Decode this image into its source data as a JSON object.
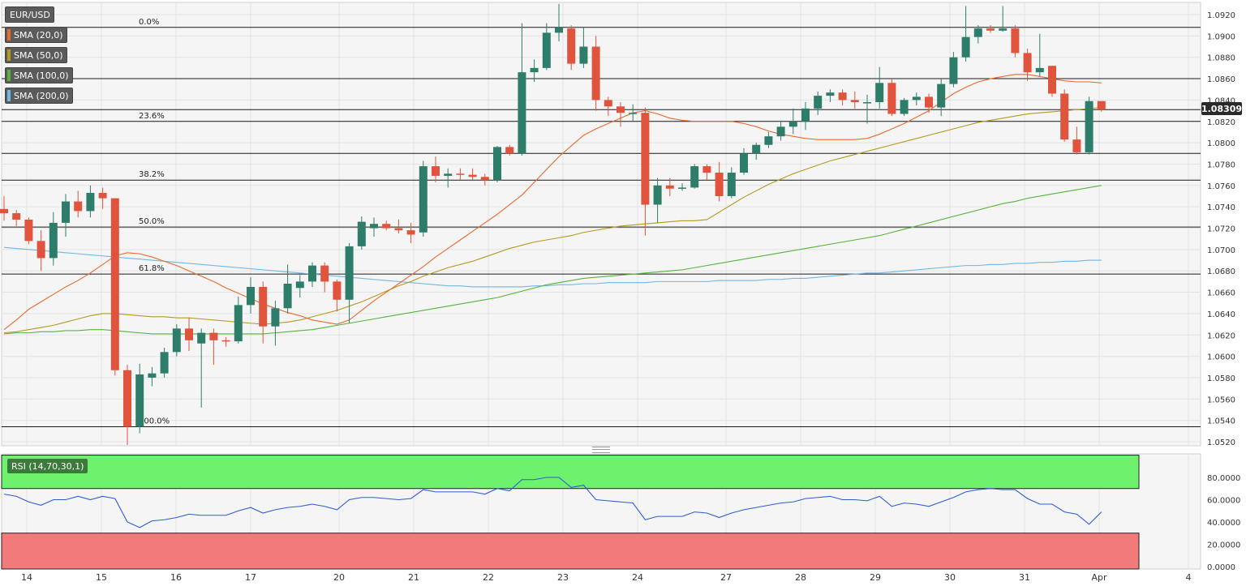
{
  "symbol": "EUR/USD",
  "current_price": "1.08309",
  "colors": {
    "bull": "#2e7d6b",
    "bear": "#e0533c",
    "sma20": "#e86a2d",
    "sma50": "#b59a1e",
    "sma100": "#57b33c",
    "sma200": "#6fb7e6",
    "rsi_line": "#2f5bd6",
    "rsi_over": "#6ef26e",
    "rsi_under": "#f27a7a"
  },
  "indicators": [
    {
      "label": "SMA (20,0)",
      "color": "#e86a2d"
    },
    {
      "label": "SMA (50,0)",
      "color": "#b59a1e"
    },
    {
      "label": "SMA (100,0)",
      "color": "#57b33c"
    },
    {
      "label": "SMA (200,0)",
      "color": "#6fb7e6"
    }
  ],
  "rsi_label": "RSI (14,70,30,1)",
  "chart_data": {
    "type": "candlestick",
    "instrument": "EUR/USD",
    "ylim": [
      1.0515,
      1.093
    ],
    "y_ticks": [
      "1.0520",
      "1.0540",
      "1.0560",
      "1.0580",
      "1.0600",
      "1.0620",
      "1.0640",
      "1.0660",
      "1.0680",
      "1.0700",
      "1.0720",
      "1.0740",
      "1.0760",
      "1.0780",
      "1.0800",
      "1.0820",
      "1.0840",
      "1.0860",
      "1.0880",
      "1.0900",
      "1.0920"
    ],
    "x_ticks": [
      "14",
      "15",
      "16",
      "17",
      "20",
      "21",
      "22",
      "23",
      "24",
      "27",
      "28",
      "29",
      "30",
      "31",
      "Apr",
      "4"
    ],
    "fib_levels": [
      {
        "label": "0.0%",
        "price": 1.0908
      },
      {
        "label": "23.6%",
        "price": 1.082
      },
      {
        "label": "38.2%",
        "price": 1.0765
      },
      {
        "label": "50.0%",
        "price": 1.0721
      },
      {
        "label": "61.8%",
        "price": 1.0677
      },
      {
        "label": "100.0%",
        "price": 1.0534
      }
    ],
    "horizontal_levels": [
      1.086,
      1.0831,
      1.079
    ],
    "candles": [
      {
        "t": 0,
        "o": 1.0738,
        "h": 1.075,
        "l": 1.0727,
        "c": 1.0734
      },
      {
        "t": 1,
        "o": 1.0734,
        "h": 1.0737,
        "l": 1.0722,
        "c": 1.0728
      },
      {
        "t": 2,
        "o": 1.0728,
        "h": 1.073,
        "l": 1.0705,
        "c": 1.0708
      },
      {
        "t": 3,
        "o": 1.0708,
        "h": 1.0718,
        "l": 1.068,
        "c": 1.0692
      },
      {
        "t": 4,
        "o": 1.0692,
        "h": 1.0735,
        "l": 1.0685,
        "c": 1.0725
      },
      {
        "t": 5,
        "o": 1.0725,
        "h": 1.0752,
        "l": 1.0712,
        "c": 1.0745
      },
      {
        "t": 6,
        "o": 1.0745,
        "h": 1.0755,
        "l": 1.073,
        "c": 1.0736
      },
      {
        "t": 7,
        "o": 1.0736,
        "h": 1.076,
        "l": 1.073,
        "c": 1.0753
      },
      {
        "t": 8,
        "o": 1.0753,
        "h": 1.0758,
        "l": 1.0738,
        "c": 1.0748
      },
      {
        "t": 9,
        "o": 1.0748,
        "h": 1.0748,
        "l": 1.0582,
        "c": 1.0587
      },
      {
        "t": 10,
        "o": 1.0587,
        "h": 1.0592,
        "l": 1.0517,
        "c": 1.0534
      },
      {
        "t": 11,
        "o": 1.0534,
        "h": 1.0593,
        "l": 1.0528,
        "c": 1.0583
      },
      {
        "t": 12,
        "o": 1.058,
        "h": 1.059,
        "l": 1.0572,
        "c": 1.0584
      },
      {
        "t": 13,
        "o": 1.0584,
        "h": 1.0608,
        "l": 1.058,
        "c": 1.0604
      },
      {
        "t": 14,
        "o": 1.0604,
        "h": 1.063,
        "l": 1.06,
        "c": 1.0626
      },
      {
        "t": 15,
        "o": 1.0626,
        "h": 1.0636,
        "l": 1.0605,
        "c": 1.0615
      },
      {
        "t": 16,
        "o": 1.0612,
        "h": 1.0626,
        "l": 1.0552,
        "c": 1.0622
      },
      {
        "t": 17,
        "o": 1.0622,
        "h": 1.0626,
        "l": 1.0592,
        "c": 1.0615
      },
      {
        "t": 18,
        "o": 1.0615,
        "h": 1.0618,
        "l": 1.0609,
        "c": 1.0614
      },
      {
        "t": 19,
        "o": 1.0614,
        "h": 1.0656,
        "l": 1.0612,
        "c": 1.0648
      },
      {
        "t": 20,
        "o": 1.0648,
        "h": 1.0674,
        "l": 1.064,
        "c": 1.0665
      },
      {
        "t": 21,
        "o": 1.0665,
        "h": 1.067,
        "l": 1.0612,
        "c": 1.0628
      },
      {
        "t": 22,
        "o": 1.0628,
        "h": 1.0652,
        "l": 1.061,
        "c": 1.0645
      },
      {
        "t": 23,
        "o": 1.0645,
        "h": 1.0686,
        "l": 1.064,
        "c": 1.0668
      },
      {
        "t": 24,
        "o": 1.0664,
        "h": 1.0676,
        "l": 1.0655,
        "c": 1.067
      },
      {
        "t": 25,
        "o": 1.067,
        "h": 1.0688,
        "l": 1.0665,
        "c": 1.0685
      },
      {
        "t": 26,
        "o": 1.0685,
        "h": 1.0688,
        "l": 1.066,
        "c": 1.067
      },
      {
        "t": 27,
        "o": 1.067,
        "h": 1.0672,
        "l": 1.0642,
        "c": 1.0653
      },
      {
        "t": 28,
        "o": 1.0653,
        "h": 1.0706,
        "l": 1.0631,
        "c": 1.0703
      },
      {
        "t": 29,
        "o": 1.0703,
        "h": 1.0731,
        "l": 1.07,
        "c": 1.0726
      },
      {
        "t": 30,
        "o": 1.072,
        "h": 1.073,
        "l": 1.0712,
        "c": 1.0724
      },
      {
        "t": 31,
        "o": 1.0724,
        "h": 1.0727,
        "l": 1.0718,
        "c": 1.072
      },
      {
        "t": 32,
        "o": 1.072,
        "h": 1.0728,
        "l": 1.0715,
        "c": 1.0718
      },
      {
        "t": 33,
        "o": 1.0718,
        "h": 1.0725,
        "l": 1.0706,
        "c": 1.0714
      },
      {
        "t": 34,
        "o": 1.0716,
        "h": 1.0783,
        "l": 1.0712,
        "c": 1.0778
      },
      {
        "t": 35,
        "o": 1.0778,
        "h": 1.0787,
        "l": 1.0763,
        "c": 1.0769
      },
      {
        "t": 36,
        "o": 1.0769,
        "h": 1.0776,
        "l": 1.0758,
        "c": 1.0771
      },
      {
        "t": 37,
        "o": 1.0771,
        "h": 1.0776,
        "l": 1.0765,
        "c": 1.077
      },
      {
        "t": 38,
        "o": 1.077,
        "h": 1.0776,
        "l": 1.0765,
        "c": 1.0768
      },
      {
        "t": 39,
        "o": 1.0768,
        "h": 1.0771,
        "l": 1.076,
        "c": 1.0765
      },
      {
        "t": 40,
        "o": 1.0765,
        "h": 1.0797,
        "l": 1.0763,
        "c": 1.0796
      },
      {
        "t": 41,
        "o": 1.0796,
        "h": 1.0798,
        "l": 1.0788,
        "c": 1.079
      },
      {
        "t": 42,
        "o": 1.079,
        "h": 1.0912,
        "l": 1.0788,
        "c": 1.0866
      },
      {
        "t": 43,
        "o": 1.0866,
        "h": 1.0878,
        "l": 1.0857,
        "c": 1.087
      },
      {
        "t": 44,
        "o": 1.087,
        "h": 1.0912,
        "l": 1.0868,
        "c": 1.0903
      },
      {
        "t": 45,
        "o": 1.0903,
        "h": 1.093,
        "l": 1.0895,
        "c": 1.0908
      },
      {
        "t": 46,
        "o": 1.0907,
        "h": 1.091,
        "l": 1.0868,
        "c": 1.0874
      },
      {
        "t": 47,
        "o": 1.0874,
        "h": 1.0908,
        "l": 1.087,
        "c": 1.089
      },
      {
        "t": 48,
        "o": 1.089,
        "h": 1.09,
        "l": 1.083,
        "c": 1.084
      },
      {
        "t": 49,
        "o": 1.084,
        "h": 1.0843,
        "l": 1.0825,
        "c": 1.0834
      },
      {
        "t": 50,
        "o": 1.0834,
        "h": 1.0838,
        "l": 1.0815,
        "c": 1.0828
      },
      {
        "t": 51,
        "o": 1.0828,
        "h": 1.0836,
        "l": 1.082,
        "c": 1.0828
      },
      {
        "t": 52,
        "o": 1.0828,
        "h": 1.0833,
        "l": 1.0713,
        "c": 1.0742
      },
      {
        "t": 53,
        "o": 1.0742,
        "h": 1.0767,
        "l": 1.0725,
        "c": 1.076
      },
      {
        "t": 54,
        "o": 1.076,
        "h": 1.0767,
        "l": 1.075,
        "c": 1.0757
      },
      {
        "t": 55,
        "o": 1.0757,
        "h": 1.0762,
        "l": 1.0755,
        "c": 1.0758
      },
      {
        "t": 56,
        "o": 1.0758,
        "h": 1.078,
        "l": 1.0757,
        "c": 1.0778
      },
      {
        "t": 57,
        "o": 1.0778,
        "h": 1.078,
        "l": 1.0765,
        "c": 1.0772
      },
      {
        "t": 58,
        "o": 1.0772,
        "h": 1.0782,
        "l": 1.0745,
        "c": 1.075
      },
      {
        "t": 59,
        "o": 1.075,
        "h": 1.0777,
        "l": 1.0748,
        "c": 1.0772
      },
      {
        "t": 60,
        "o": 1.0772,
        "h": 1.0795,
        "l": 1.077,
        "c": 1.079
      },
      {
        "t": 61,
        "o": 1.079,
        "h": 1.08,
        "l": 1.0784,
        "c": 1.0798
      },
      {
        "t": 62,
        "o": 1.0798,
        "h": 1.081,
        "l": 1.0795,
        "c": 1.0806
      },
      {
        "t": 63,
        "o": 1.0806,
        "h": 1.082,
        "l": 1.0802,
        "c": 1.0815
      },
      {
        "t": 64,
        "o": 1.0815,
        "h": 1.0832,
        "l": 1.0808,
        "c": 1.082
      },
      {
        "t": 65,
        "o": 1.082,
        "h": 1.0838,
        "l": 1.0812,
        "c": 1.0832
      },
      {
        "t": 66,
        "o": 1.0832,
        "h": 1.0848,
        "l": 1.0826,
        "c": 1.0844
      },
      {
        "t": 67,
        "o": 1.0844,
        "h": 1.085,
        "l": 1.0838,
        "c": 1.0847
      },
      {
        "t": 68,
        "o": 1.0847,
        "h": 1.085,
        "l": 1.0835,
        "c": 1.084
      },
      {
        "t": 69,
        "o": 1.084,
        "h": 1.0848,
        "l": 1.0832,
        "c": 1.0838
      },
      {
        "t": 70,
        "o": 1.0838,
        "h": 1.0845,
        "l": 1.0818,
        "c": 1.0838
      },
      {
        "t": 71,
        "o": 1.0838,
        "h": 1.0871,
        "l": 1.0832,
        "c": 1.0856
      },
      {
        "t": 72,
        "o": 1.0856,
        "h": 1.086,
        "l": 1.0825,
        "c": 1.0827
      },
      {
        "t": 73,
        "o": 1.0827,
        "h": 1.0842,
        "l": 1.0825,
        "c": 1.084
      },
      {
        "t": 74,
        "o": 1.084,
        "h": 1.0847,
        "l": 1.0835,
        "c": 1.0843
      },
      {
        "t": 75,
        "o": 1.0843,
        "h": 1.0846,
        "l": 1.0828,
        "c": 1.0833
      },
      {
        "t": 76,
        "o": 1.0833,
        "h": 1.086,
        "l": 1.0825,
        "c": 1.0855
      },
      {
        "t": 77,
        "o": 1.0855,
        "h": 1.0885,
        "l": 1.0852,
        "c": 1.088
      },
      {
        "t": 78,
        "o": 1.088,
        "h": 1.0928,
        "l": 1.0876,
        "c": 1.0899
      },
      {
        "t": 79,
        "o": 1.0899,
        "h": 1.091,
        "l": 1.0893,
        "c": 1.0907
      },
      {
        "t": 80,
        "o": 1.0907,
        "h": 1.091,
        "l": 1.0903,
        "c": 1.0905
      },
      {
        "t": 81,
        "o": 1.0905,
        "h": 1.0928,
        "l": 1.0904,
        "c": 1.0907
      },
      {
        "t": 82,
        "o": 1.0907,
        "h": 1.091,
        "l": 1.088,
        "c": 1.0884
      },
      {
        "t": 83,
        "o": 1.0884,
        "h": 1.0888,
        "l": 1.0858,
        "c": 1.0866
      },
      {
        "t": 84,
        "o": 1.0866,
        "h": 1.0902,
        "l": 1.0862,
        "c": 1.087
      },
      {
        "t": 85,
        "o": 1.0872,
        "h": 1.0872,
        "l": 1.0843,
        "c": 1.0846
      },
      {
        "t": 86,
        "o": 1.0846,
        "h": 1.085,
        "l": 1.0801,
        "c": 1.0803
      },
      {
        "t": 87,
        "o": 1.0803,
        "h": 1.0815,
        "l": 1.0789,
        "c": 1.0791
      },
      {
        "t": 88,
        "o": 1.0791,
        "h": 1.0843,
        "l": 1.0789,
        "c": 1.0839
      },
      {
        "t": 89,
        "o": 1.0839,
        "h": 1.0839,
        "l": 1.0829,
        "c": 1.0831
      }
    ],
    "sma20": [
      1.0625,
      1.0634,
      1.0644,
      1.0651,
      1.0658,
      1.0665,
      1.0671,
      1.0678,
      1.0686,
      1.0694,
      1.0697,
      1.0696,
      1.0693,
      1.0689,
      1.0685,
      1.068,
      1.0675,
      1.067,
      1.0664,
      1.0659,
      1.0654,
      1.0649,
      1.0645,
      1.0641,
      1.0638,
      1.0634,
      1.0632,
      1.063,
      1.0634,
      1.0643,
      1.0652,
      1.066,
      1.0668,
      1.0676,
      1.0684,
      1.0693,
      1.0701,
      1.0709,
      1.0717,
      1.0725,
      1.0733,
      1.0742,
      1.0751,
      1.0763,
      1.0775,
      1.0787,
      1.0797,
      1.0807,
      1.0813,
      1.0818,
      1.0823,
      1.0828,
      1.083,
      1.0827,
      1.0823,
      1.0821,
      1.082,
      1.082,
      1.082,
      1.082,
      1.0818,
      1.0815,
      1.0811,
      1.0808,
      1.0806,
      1.0804,
      1.0803,
      1.0803,
      1.0803,
      1.0803,
      1.0804,
      1.0808,
      1.0813,
      1.0818,
      1.0824,
      1.083,
      1.0838,
      1.0846,
      1.0852,
      1.0857,
      1.086,
      1.0862,
      1.0864,
      1.0864,
      1.0862,
      1.086,
      1.0858,
      1.0857,
      1.0857,
      1.0856
    ],
    "sma50": [
      1.0622,
      1.0623,
      1.0625,
      1.0627,
      1.0629,
      1.0632,
      1.0635,
      1.0638,
      1.064,
      1.064,
      1.0639,
      1.0638,
      1.0637,
      1.0637,
      1.0636,
      1.0636,
      1.0635,
      1.0634,
      1.0633,
      1.0632,
      1.0631,
      1.063,
      1.0631,
      1.0632,
      1.0634,
      1.0637,
      1.064,
      1.0643,
      1.0647,
      1.0651,
      1.0656,
      1.0661,
      1.0666,
      1.067,
      1.0675,
      1.0679,
      1.0683,
      1.0686,
      1.0689,
      1.0693,
      1.0697,
      1.0701,
      1.0704,
      1.0707,
      1.0709,
      1.0711,
      1.0713,
      1.0716,
      1.0718,
      1.072,
      1.0722,
      1.0723,
      1.0724,
      1.0725,
      1.0726,
      1.0727,
      1.0727,
      1.0728,
      1.0735,
      1.0742,
      1.0749,
      1.0755,
      1.0761,
      1.0766,
      1.0771,
      1.0775,
      1.0779,
      1.0783,
      1.0786,
      1.0789,
      1.0792,
      1.0795,
      1.0798,
      1.0801,
      1.0804,
      1.0807,
      1.081,
      1.0813,
      1.0816,
      1.0819,
      1.0821,
      1.0823,
      1.0825,
      1.0827,
      1.0828,
      1.0829,
      1.083,
      1.0831,
      1.0832,
      1.0833
    ],
    "sma100": [
      1.0621,
      1.0622,
      1.0622,
      1.0623,
      1.0623,
      1.0624,
      1.0624,
      1.0625,
      1.0625,
      1.0624,
      1.0623,
      1.0622,
      1.0621,
      1.0621,
      1.0621,
      1.0621,
      1.0621,
      1.0621,
      1.0621,
      1.0621,
      1.0621,
      1.0621,
      1.0622,
      1.0623,
      1.0624,
      1.0625,
      1.0627,
      1.0629,
      1.0631,
      1.0633,
      1.0635,
      1.0637,
      1.0639,
      1.0641,
      1.0643,
      1.0645,
      1.0647,
      1.0649,
      1.0651,
      1.0653,
      1.0655,
      1.0658,
      1.0661,
      1.0664,
      1.0667,
      1.0669,
      1.0671,
      1.0673,
      1.0674,
      1.0675,
      1.0676,
      1.0677,
      1.0678,
      1.0679,
      1.068,
      1.0681,
      1.0683,
      1.0685,
      1.0687,
      1.0689,
      1.0691,
      1.0693,
      1.0695,
      1.0697,
      1.0699,
      1.0701,
      1.0703,
      1.0705,
      1.0707,
      1.0709,
      1.0711,
      1.0713,
      1.0716,
      1.0719,
      1.0722,
      1.0725,
      1.0728,
      1.0731,
      1.0734,
      1.0737,
      1.074,
      1.0743,
      1.0745,
      1.0748,
      1.075,
      1.0752,
      1.0754,
      1.0756,
      1.0758,
      1.076
    ],
    "sma200": [
      1.0702,
      1.0701,
      1.07,
      1.0699,
      1.0698,
      1.0697,
      1.0696,
      1.0695,
      1.0694,
      1.0693,
      1.0692,
      1.0691,
      1.069,
      1.0689,
      1.0688,
      1.0687,
      1.0686,
      1.0685,
      1.0684,
      1.0683,
      1.0682,
      1.0681,
      1.068,
      1.0679,
      1.0678,
      1.0677,
      1.0676,
      1.0675,
      1.0674,
      1.0673,
      1.0672,
      1.0671,
      1.067,
      1.0669,
      1.0668,
      1.0667,
      1.0666,
      1.0666,
      1.0665,
      1.0665,
      1.0665,
      1.0665,
      1.0665,
      1.0666,
      1.0666,
      1.0667,
      1.0667,
      1.0668,
      1.0668,
      1.0669,
      1.0669,
      1.0669,
      1.0669,
      1.067,
      1.067,
      1.067,
      1.067,
      1.067,
      1.0671,
      1.0671,
      1.0671,
      1.0671,
      1.0672,
      1.0672,
      1.0673,
      1.0673,
      1.0674,
      1.0675,
      1.0676,
      1.0677,
      1.0678,
      1.0678,
      1.0679,
      1.068,
      1.0681,
      1.0682,
      1.0683,
      1.0684,
      1.0685,
      1.0685,
      1.0686,
      1.0686,
      1.0687,
      1.0687,
      1.0688,
      1.0688,
      1.0689,
      1.0689,
      1.069,
      1.069
    ],
    "rsi": {
      "ylim": [
        0,
        100
      ],
      "y_ticks": [
        "0.0000",
        "20.0000",
        "40.0000",
        "60.0000",
        "80.0000"
      ],
      "overbought": 70,
      "oversold": 30,
      "values": [
        65,
        63,
        58,
        55,
        60,
        60,
        63,
        60,
        63,
        61,
        40,
        35,
        41,
        42,
        44,
        47,
        46,
        46,
        46,
        50,
        53,
        48,
        51,
        53,
        54,
        56,
        54,
        51,
        60,
        62,
        62,
        61,
        60,
        61,
        69,
        67,
        67,
        67,
        67,
        65,
        70,
        68,
        78,
        78,
        80,
        80,
        71,
        73,
        60,
        59,
        58,
        57,
        42,
        45,
        45,
        45,
        49,
        48,
        44,
        48,
        51,
        53,
        55,
        57,
        58,
        61,
        62,
        63,
        60,
        60,
        59,
        63,
        54,
        57,
        56,
        54,
        58,
        62,
        67,
        69,
        70,
        69,
        69,
        61,
        56,
        56,
        49,
        47,
        38,
        49
      ]
    }
  }
}
